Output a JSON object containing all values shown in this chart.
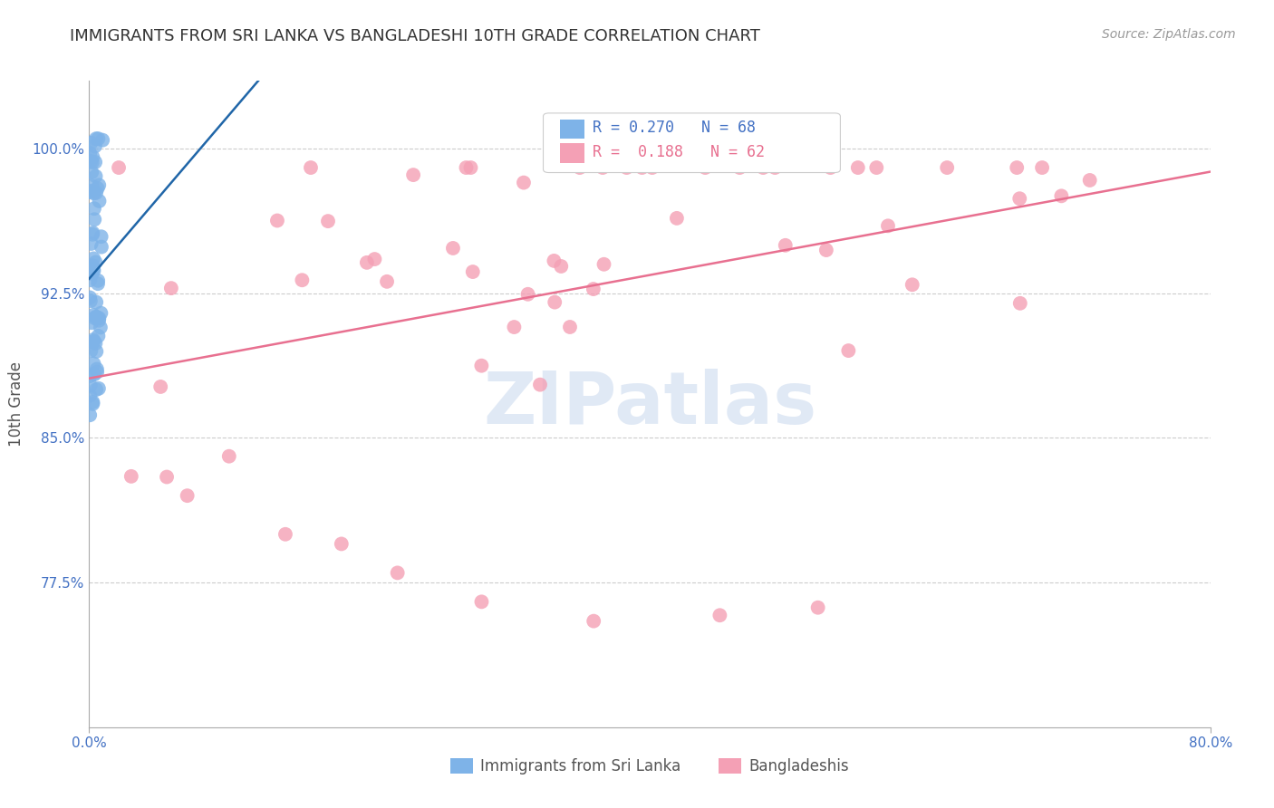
{
  "title": "IMMIGRANTS FROM SRI LANKA VS BANGLADESHI 10TH GRADE CORRELATION CHART",
  "source": "Source: ZipAtlas.com",
  "ylabel": "10th Grade",
  "xlim": [
    0.0,
    0.8
  ],
  "ylim": [
    0.7,
    1.035
  ],
  "sri_lanka_R": 0.27,
  "sri_lanka_N": 68,
  "bangladeshi_R": 0.188,
  "bangladeshi_N": 62,
  "sri_lanka_color": "#7EB3E8",
  "bangladeshi_color": "#F4A0B5",
  "sri_lanka_line_color": "#2066A8",
  "bangladeshi_line_color": "#E87090",
  "legend_label_1": "Immigrants from Sri Lanka",
  "legend_label_2": "Bangladeshis",
  "watermark_text": "ZIPatlas",
  "background_color": "#ffffff",
  "title_color": "#333333",
  "axis_label_color": "#555555",
  "tick_label_color": "#4472C4",
  "grid_color": "#cccccc",
  "yticks": [
    1.0,
    0.925,
    0.85,
    0.775
  ],
  "ytick_labels": [
    "100.0%",
    "92.5%",
    "85.0%",
    "77.5%"
  ]
}
